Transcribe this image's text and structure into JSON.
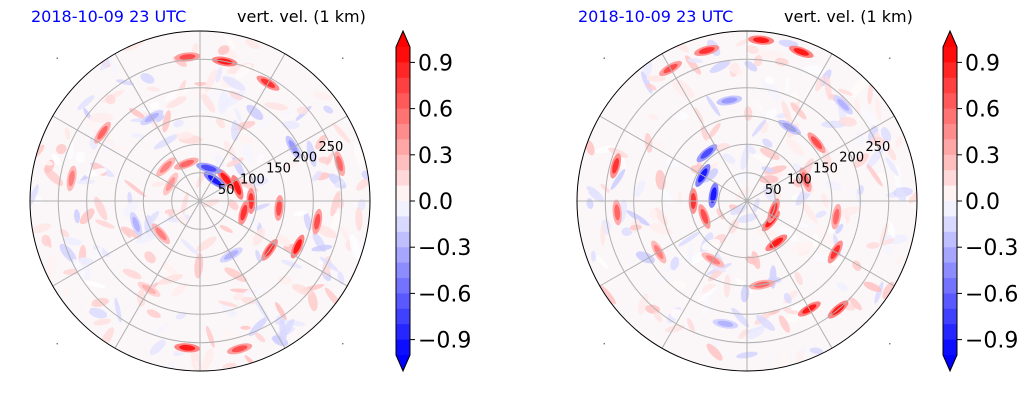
{
  "chart_data": [
    {
      "type": "heatmap",
      "projection": "polar",
      "title_left": "2018-10-09 23 UTC",
      "title_right": "vert. vel. (1 km)",
      "radial_ticks": [
        "50",
        "100",
        "150",
        "200",
        "250"
      ],
      "radial_tick_values": [
        50,
        100,
        150,
        200,
        250
      ],
      "radial_max": 300,
      "angular_gridline_step_deg": 30,
      "colorbar": {
        "ticks": [
          "0.9",
          "0.6",
          "0.3",
          "0.0",
          "−0.3",
          "−0.6",
          "−0.9"
        ],
        "tick_values": [
          0.9,
          0.6,
          0.3,
          0.0,
          -0.3,
          -0.6,
          -0.9
        ],
        "range": [
          -1.0,
          1.0
        ],
        "extend": "both",
        "cmap": "bwr"
      },
      "colors": {
        "positive": "#ff0000",
        "negative": "#0000ff",
        "neutral": "#ffffff",
        "title_left": "#0000ff"
      },
      "features": [
        {
          "angle_deg": 80,
          "r": 250,
          "value": 0.9
        },
        {
          "angle_deg": 60,
          "r": 240,
          "value": 0.8
        },
        {
          "angle_deg": 95,
          "r": 255,
          "value": 0.7
        },
        {
          "angle_deg": 40,
          "r": 60,
          "value": 0.9
        },
        {
          "angle_deg": 20,
          "r": 70,
          "value": 0.9
        },
        {
          "angle_deg": 0,
          "r": 90,
          "value": 0.8
        },
        {
          "angle_deg": -15,
          "r": 80,
          "value": 0.8
        },
        {
          "angle_deg": 55,
          "r": 45,
          "value": -0.9
        },
        {
          "angle_deg": 75,
          "r": 60,
          "value": -0.7
        },
        {
          "angle_deg": 110,
          "r": 70,
          "value": 0.6
        },
        {
          "angle_deg": 135,
          "r": 85,
          "value": 0.5
        },
        {
          "angle_deg": 150,
          "r": 60,
          "value": 0.4
        },
        {
          "angle_deg": -35,
          "r": 150,
          "value": 0.8
        },
        {
          "angle_deg": -25,
          "r": 190,
          "value": 0.9
        },
        {
          "angle_deg": -10,
          "r": 210,
          "value": 0.7
        },
        {
          "angle_deg": 15,
          "r": 255,
          "value": 0.6
        },
        {
          "angle_deg": 30,
          "r": 190,
          "value": -0.4
        },
        {
          "angle_deg": -95,
          "r": 260,
          "value": 0.9
        },
        {
          "angle_deg": -75,
          "r": 270,
          "value": 0.7
        },
        {
          "angle_deg": -120,
          "r": 180,
          "value": 0.3
        },
        {
          "angle_deg": 170,
          "r": 230,
          "value": 0.5
        },
        {
          "angle_deg": 145,
          "r": 210,
          "value": 0.6
        },
        {
          "angle_deg": -160,
          "r": 120,
          "value": -0.3
        },
        {
          "angle_deg": -60,
          "r": 110,
          "value": -0.3
        },
        {
          "angle_deg": 120,
          "r": 170,
          "value": -0.3
        },
        {
          "angle_deg": -140,
          "r": 90,
          "value": 0.5
        },
        {
          "angle_deg": -5,
          "r": 140,
          "value": 0.7
        }
      ]
    },
    {
      "type": "heatmap",
      "projection": "polar",
      "title_left": "2018-10-09 23 UTC",
      "title_right": "vert. vel. (1 km)",
      "radial_ticks": [
        "50",
        "100",
        "150",
        "200",
        "250"
      ],
      "radial_tick_values": [
        50,
        100,
        150,
        200,
        250
      ],
      "radial_max": 300,
      "angular_gridline_step_deg": 30,
      "colorbar": {
        "ticks": [
          "0.9",
          "0.6",
          "0.3",
          "0.0",
          "−0.3",
          "−0.6",
          "−0.9"
        ],
        "tick_values": [
          0.9,
          0.6,
          0.3,
          0.0,
          -0.3,
          -0.6,
          -0.9
        ],
        "range": [
          -1.0,
          1.0
        ],
        "extend": "both",
        "cmap": "bwr"
      },
      "colors": {
        "positive": "#ff0000",
        "negative": "#0000ff",
        "neutral": "#ffffff",
        "title_left": "#0000ff"
      },
      "features": [
        {
          "angle_deg": 85,
          "r": 285,
          "value": 0.9
        },
        {
          "angle_deg": 70,
          "r": 280,
          "value": 0.9
        },
        {
          "angle_deg": 105,
          "r": 275,
          "value": 0.8
        },
        {
          "angle_deg": 120,
          "r": 270,
          "value": 0.7
        },
        {
          "angle_deg": 150,
          "r": 90,
          "value": -0.9
        },
        {
          "angle_deg": 170,
          "r": 60,
          "value": -0.9
        },
        {
          "angle_deg": 130,
          "r": 110,
          "value": -0.7
        },
        {
          "angle_deg": 180,
          "r": 95,
          "value": 0.8
        },
        {
          "angle_deg": 200,
          "r": 80,
          "value": 0.7
        },
        {
          "angle_deg": -40,
          "r": 55,
          "value": 0.9
        },
        {
          "angle_deg": -55,
          "r": 90,
          "value": 0.9
        },
        {
          "angle_deg": -20,
          "r": 50,
          "value": 0.8
        },
        {
          "angle_deg": 20,
          "r": 110,
          "value": 0.6
        },
        {
          "angle_deg": 40,
          "r": 160,
          "value": 0.7
        },
        {
          "angle_deg": 60,
          "r": 150,
          "value": -0.4
        },
        {
          "angle_deg": -60,
          "r": 220,
          "value": 0.9
        },
        {
          "angle_deg": -50,
          "r": 250,
          "value": 0.9
        },
        {
          "angle_deg": -30,
          "r": 180,
          "value": 0.8
        },
        {
          "angle_deg": -10,
          "r": 160,
          "value": 0.6
        },
        {
          "angle_deg": 165,
          "r": 240,
          "value": 0.8
        },
        {
          "angle_deg": 185,
          "r": 230,
          "value": 0.6
        },
        {
          "angle_deg": -150,
          "r": 180,
          "value": 0.5
        },
        {
          "angle_deg": -120,
          "r": 120,
          "value": 0.5
        },
        {
          "angle_deg": -100,
          "r": 220,
          "value": -0.3
        },
        {
          "angle_deg": 100,
          "r": 180,
          "value": -0.4
        },
        {
          "angle_deg": -80,
          "r": 150,
          "value": 0.6
        },
        {
          "angle_deg": 45,
          "r": 240,
          "value": -0.3
        }
      ]
    }
  ]
}
